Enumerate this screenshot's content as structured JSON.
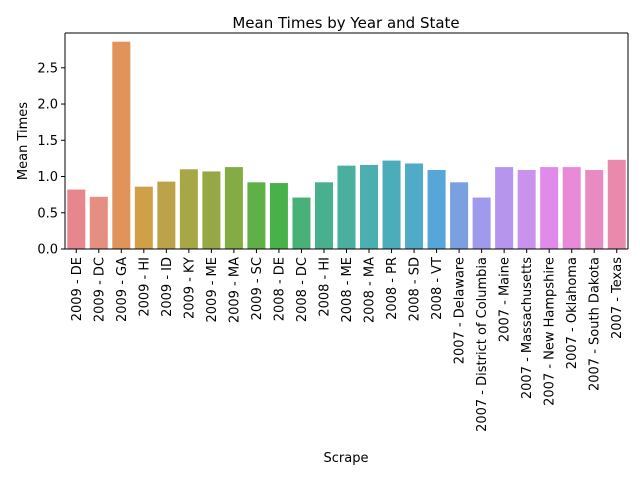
{
  "chart_data": {
    "type": "bar",
    "title": "Mean Times by Year and State",
    "xlabel": "Scrape",
    "ylabel": "Mean Times",
    "ylim": [
      0,
      2.98
    ],
    "yticks": [
      "0.0",
      "0.5",
      "1.0",
      "1.5",
      "2.0",
      "2.5"
    ],
    "grid": false,
    "legend": "none",
    "categories": [
      "2009 - DE",
      "2009 - DC",
      "2009 - GA",
      "2009 - HI",
      "2009 - ID",
      "2009 - KY",
      "2009 - ME",
      "2009 - MA",
      "2009 - SC",
      "2008 - DE",
      "2008 - DC",
      "2008 - HI",
      "2008 - ME",
      "2008 - MA",
      "2008 - PR",
      "2008 - SD",
      "2008 - VT",
      "2007 - Delaware",
      "2007 - District of Columbia",
      "2007 - Maine",
      "2007 - Massachusetts",
      "2007 - New Hampshire",
      "2007 - Oklahoma",
      "2007 - South Dakota",
      "2007 - Texas"
    ],
    "values": [
      0.82,
      0.72,
      2.86,
      0.86,
      0.93,
      1.1,
      1.07,
      1.13,
      0.92,
      0.91,
      0.71,
      0.92,
      1.15,
      1.16,
      1.22,
      1.18,
      1.09,
      0.92,
      0.71,
      1.13,
      1.09,
      1.13,
      1.13,
      1.09,
      1.23
    ],
    "colors": [
      "#e8868d",
      "#e48f80",
      "#e19459",
      "#d0a049",
      "#bca34a",
      "#a8a746",
      "#96a844",
      "#83ac44",
      "#5fb046",
      "#48b14a",
      "#47b177",
      "#48b08f",
      "#49b0a0",
      "#4aafae",
      "#4cadba",
      "#4fabc8",
      "#56a6d9",
      "#7aa0e0",
      "#9f9aeb",
      "#b695ec",
      "#c992ec",
      "#e08aec",
      "#e88ad8",
      "#e98bc3",
      "#e98aad"
    ]
  }
}
